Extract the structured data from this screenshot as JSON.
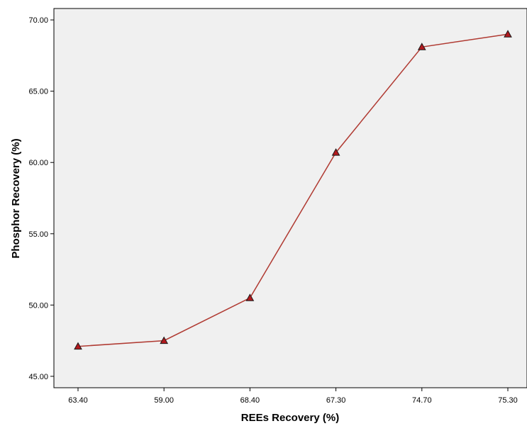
{
  "chart_data": {
    "type": "line",
    "xlabel": "REEs Recovery (%)",
    "ylabel": "Phosphor Recovery (%)",
    "categories": [
      "63.40",
      "59.00",
      "68.40",
      "67.30",
      "74.70",
      "75.30"
    ],
    "series": [
      {
        "values": [
          47.1,
          47.5,
          50.5,
          60.7,
          68.1,
          69.0
        ]
      }
    ],
    "yticks": [
      "45.00",
      "50.00",
      "55.00",
      "60.00",
      "65.00",
      "70.00"
    ],
    "ylim": [
      44.2,
      70.8
    ],
    "grid": false,
    "marker": "triangle",
    "colors": {
      "line": "#b03a32",
      "marker_fill": "#b3191e",
      "marker_stroke": "#1a1a1a",
      "plot_background": "#f0f0f0"
    }
  }
}
